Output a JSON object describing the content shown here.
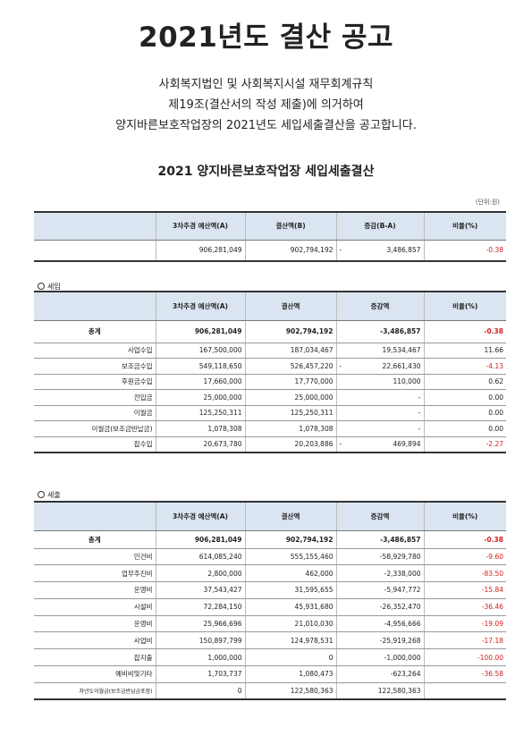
{
  "title": "2021년도 결산 공고",
  "intro": [
    "사회복지법인 및 사회복지시설 재무회계규칙",
    "제19조(결산서의 작성 제출)에 의거하여",
    "양지바른보호작업장의 2021년도 세입세출결산을 공고합니다."
  ],
  "subtitle": "2021 양지바른보호작업장 세입세출결산",
  "unit": "(단위:원)",
  "summary": {
    "headers": [
      "",
      "3차추경 예산액(A)",
      "결산액(B)",
      "증감(B-A)",
      "비율(%)"
    ],
    "row": {
      "label": "",
      "budget": "906,281,049",
      "settle": "902,794,192",
      "diff_sign": "-",
      "diff": "3,486,857",
      "ratio": "-0.38"
    }
  },
  "revenue": {
    "section_label": "세입",
    "headers": [
      "",
      "3차추경 예산액(A)",
      "결산액",
      "증감액",
      "비율(%)"
    ],
    "rows": [
      {
        "label": "총계",
        "budget": "906,281,049",
        "settle": "902,794,192",
        "diff_sign": "",
        "diff": "-3,486,857",
        "ratio": "-0.38"
      },
      {
        "label": "사업수입",
        "budget": "167,500,000",
        "settle": "187,034,467",
        "diff_sign": "",
        "diff": "19,534,467",
        "ratio": "11.66"
      },
      {
        "label": "보조금수입",
        "budget": "549,118,650",
        "settle": "526,457,220",
        "diff_sign": "-",
        "diff": "22,661,430",
        "ratio": "-4.13"
      },
      {
        "label": "후원금수입",
        "budget": "17,660,000",
        "settle": "17,770,000",
        "diff_sign": "",
        "diff": "110,000",
        "ratio": "0.62"
      },
      {
        "label": "전입금",
        "budget": "25,000,000",
        "settle": "25,000,000",
        "diff_sign": "",
        "diff": "-",
        "ratio": "0.00"
      },
      {
        "label": "이월금",
        "budget": "125,250,311",
        "settle": "125,250,311",
        "diff_sign": "",
        "diff": "-",
        "ratio": "0.00"
      },
      {
        "label": "이월금(보조금반납금)",
        "budget": "1,078,308",
        "settle": "1,078,308",
        "diff_sign": "",
        "diff": "-",
        "ratio": "0.00"
      },
      {
        "label": "잡수입",
        "budget": "20,673,780",
        "settle": "20,203,886",
        "diff_sign": "-",
        "diff": "469,894",
        "ratio": "-2.27"
      }
    ]
  },
  "expense": {
    "section_label": "세출",
    "headers": [
      "",
      "3차추경 예산액(A)",
      "결산액",
      "증감액",
      "비율(%)"
    ],
    "rows": [
      {
        "label": "총계",
        "budget": "906,281,049",
        "settle": "902,794,192",
        "diff_sign": "",
        "diff": "-3,486,857",
        "ratio": "-0.38"
      },
      {
        "label": "인건비",
        "budget": "614,085,240",
        "settle": "555,155,460",
        "diff_sign": "",
        "diff": "-58,929,780",
        "ratio": "-9.60"
      },
      {
        "label": "업무추진비",
        "budget": "2,800,000",
        "settle": "462,000",
        "diff_sign": "",
        "diff": "-2,338,000",
        "ratio": "-83.50"
      },
      {
        "label": "운영비",
        "budget": "37,543,427",
        "settle": "31,595,655",
        "diff_sign": "",
        "diff": "-5,947,772",
        "ratio": "-15.84"
      },
      {
        "label": "시설비",
        "budget": "72,284,150",
        "settle": "45,931,680",
        "diff_sign": "",
        "diff": "-26,352,470",
        "ratio": "-36.46"
      },
      {
        "label": "운영비",
        "budget": "25,966,696",
        "settle": "21,010,030",
        "diff_sign": "",
        "diff": "-4,956,666",
        "ratio": "-19.09"
      },
      {
        "label": "사업비",
        "budget": "150,897,799",
        "settle": "124,978,531",
        "diff_sign": "",
        "diff": "-25,919,268",
        "ratio": "-17.18"
      },
      {
        "label": "잡지출",
        "budget": "1,000,000",
        "settle": "0",
        "diff_sign": "",
        "diff": "-1,000,000",
        "ratio": "-100.00"
      },
      {
        "label": "예비비및기타",
        "budget": "1,703,737",
        "settle": "1,080,473",
        "diff_sign": "",
        "diff": "-623,264",
        "ratio": "-36.58"
      },
      {
        "label": "차년도이월금(보조금반납금포함)",
        "budget": "0",
        "settle": "122,580,363",
        "diff_sign": "",
        "diff": "122,580,363",
        "ratio": ""
      }
    ]
  },
  "colors": {
    "header_bg": "#dbe5f1",
    "negative": "#d42020"
  }
}
